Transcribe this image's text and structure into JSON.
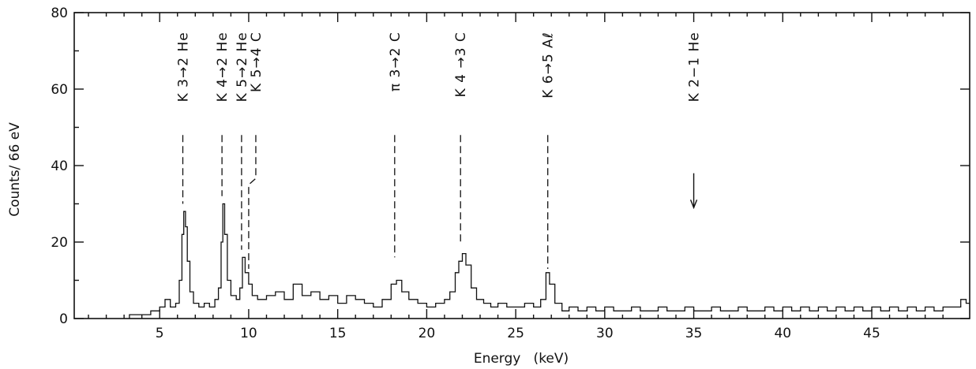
{
  "chart_data": {
    "type": "line",
    "title": "",
    "xlabel": "Energy   (keV)",
    "ylabel": "Counts/ 66 eV",
    "xlim": [
      0.2,
      50.5
    ],
    "ylim": [
      0,
      80
    ],
    "x_ticks": [
      5,
      10,
      15,
      20,
      25,
      30,
      35,
      40,
      45
    ],
    "y_ticks": [
      0,
      20,
      40,
      60,
      80
    ],
    "grid": false,
    "legend": "none",
    "series": [
      {
        "values": [
          [
            3.3,
            1
          ],
          [
            4.0,
            1
          ],
          [
            4.5,
            2
          ],
          [
            5.0,
            3
          ],
          [
            5.3,
            5
          ],
          [
            5.6,
            3
          ],
          [
            5.9,
            4
          ],
          [
            6.1,
            10
          ],
          [
            6.25,
            22
          ],
          [
            6.35,
            28
          ],
          [
            6.45,
            24
          ],
          [
            6.55,
            15
          ],
          [
            6.7,
            7
          ],
          [
            6.9,
            4
          ],
          [
            7.2,
            3
          ],
          [
            7.5,
            4
          ],
          [
            7.8,
            3
          ],
          [
            8.1,
            5
          ],
          [
            8.3,
            8
          ],
          [
            8.45,
            20
          ],
          [
            8.55,
            30
          ],
          [
            8.65,
            22
          ],
          [
            8.8,
            10
          ],
          [
            9.0,
            6
          ],
          [
            9.3,
            5
          ],
          [
            9.5,
            8
          ],
          [
            9.65,
            16
          ],
          [
            9.8,
            12
          ],
          [
            10.0,
            9
          ],
          [
            10.2,
            6
          ],
          [
            10.5,
            5
          ],
          [
            11.0,
            6
          ],
          [
            11.5,
            7
          ],
          [
            12.0,
            5
          ],
          [
            12.5,
            9
          ],
          [
            13.0,
            6
          ],
          [
            13.5,
            7
          ],
          [
            14.0,
            5
          ],
          [
            14.5,
            6
          ],
          [
            15.0,
            4
          ],
          [
            15.5,
            6
          ],
          [
            16.0,
            5
          ],
          [
            16.5,
            4
          ],
          [
            17.0,
            3
          ],
          [
            17.5,
            5
          ],
          [
            18.0,
            9
          ],
          [
            18.3,
            10
          ],
          [
            18.6,
            7
          ],
          [
            19.0,
            5
          ],
          [
            19.5,
            4
          ],
          [
            20.0,
            3
          ],
          [
            20.5,
            4
          ],
          [
            21.0,
            5
          ],
          [
            21.3,
            7
          ],
          [
            21.6,
            12
          ],
          [
            21.8,
            15
          ],
          [
            22.0,
            17
          ],
          [
            22.2,
            14
          ],
          [
            22.5,
            8
          ],
          [
            22.8,
            5
          ],
          [
            23.2,
            4
          ],
          [
            23.6,
            3
          ],
          [
            24.0,
            4
          ],
          [
            24.5,
            3
          ],
          [
            25.0,
            3
          ],
          [
            25.5,
            4
          ],
          [
            26.0,
            3
          ],
          [
            26.4,
            5
          ],
          [
            26.7,
            12
          ],
          [
            26.9,
            9
          ],
          [
            27.2,
            4
          ],
          [
            27.6,
            2
          ],
          [
            28.0,
            3
          ],
          [
            28.5,
            2
          ],
          [
            29.0,
            3
          ],
          [
            29.5,
            2
          ],
          [
            30.0,
            3
          ],
          [
            30.5,
            2
          ],
          [
            31.0,
            2
          ],
          [
            31.5,
            3
          ],
          [
            32.0,
            2
          ],
          [
            32.5,
            2
          ],
          [
            33.0,
            3
          ],
          [
            33.5,
            2
          ],
          [
            34.0,
            2
          ],
          [
            34.5,
            3
          ],
          [
            35.0,
            2
          ],
          [
            35.5,
            2
          ],
          [
            36.0,
            3
          ],
          [
            36.5,
            2
          ],
          [
            37.0,
            2
          ],
          [
            37.5,
            3
          ],
          [
            38.0,
            2
          ],
          [
            38.5,
            2
          ],
          [
            39.0,
            3
          ],
          [
            39.5,
            2
          ],
          [
            40.0,
            3
          ],
          [
            40.5,
            2
          ],
          [
            41.0,
            3
          ],
          [
            41.5,
            2
          ],
          [
            42.0,
            3
          ],
          [
            42.5,
            2
          ],
          [
            43.0,
            3
          ],
          [
            43.5,
            2
          ],
          [
            44.0,
            3
          ],
          [
            44.5,
            2
          ],
          [
            45.0,
            3
          ],
          [
            45.5,
            2
          ],
          [
            46.0,
            3
          ],
          [
            46.5,
            2
          ],
          [
            47.0,
            3
          ],
          [
            47.5,
            2
          ],
          [
            48.0,
            3
          ],
          [
            48.5,
            2
          ],
          [
            49.0,
            3
          ],
          [
            49.5,
            3
          ],
          [
            50.0,
            5
          ],
          [
            50.3,
            4
          ]
        ]
      }
    ],
    "annotations": [
      {
        "id": "k32he",
        "label": "K 3→2 He",
        "x": 6.3,
        "label_top": 75,
        "leader_top": 48,
        "leader_bottom": 30,
        "leader_style": "dashed"
      },
      {
        "id": "k42he",
        "label": "K 4→2 He",
        "x": 8.5,
        "label_top": 75,
        "leader_top": 48,
        "leader_bottom": 32,
        "leader_style": "dashed"
      },
      {
        "id": "k52he",
        "label": "K 5→2 He",
        "x": 9.6,
        "label_top": 75,
        "leader_top": 48,
        "leader_bottom": 18,
        "leader_style": "dashed"
      },
      {
        "id": "k54c",
        "label": "K 5→4 C",
        "x": 10.4,
        "label_top": 75,
        "leader_top": 48,
        "leader_bottom": 13,
        "leader_style": "dashed-bent",
        "x_end": 10.0,
        "bend_y": 35
      },
      {
        "id": "pi32c",
        "label": "π 3→2 C",
        "x": 18.2,
        "label_top": 75,
        "leader_top": 48,
        "leader_bottom": 16,
        "leader_style": "dashed"
      },
      {
        "id": "k43c",
        "label": "K 4 →3 C",
        "x": 21.9,
        "label_top": 75,
        "leader_top": 48,
        "leader_bottom": 20,
        "leader_style": "dashed"
      },
      {
        "id": "k65al",
        "label": "K 6→5 Aℓ",
        "x": 26.8,
        "label_top": 75,
        "leader_top": 48,
        "leader_bottom": 13,
        "leader_style": "dashed"
      },
      {
        "id": "k21he",
        "label": "K 2−1 He",
        "x": 35.0,
        "label_top": 75,
        "leader_top": 38,
        "leader_bottom": 29,
        "leader_style": "arrow"
      }
    ]
  }
}
